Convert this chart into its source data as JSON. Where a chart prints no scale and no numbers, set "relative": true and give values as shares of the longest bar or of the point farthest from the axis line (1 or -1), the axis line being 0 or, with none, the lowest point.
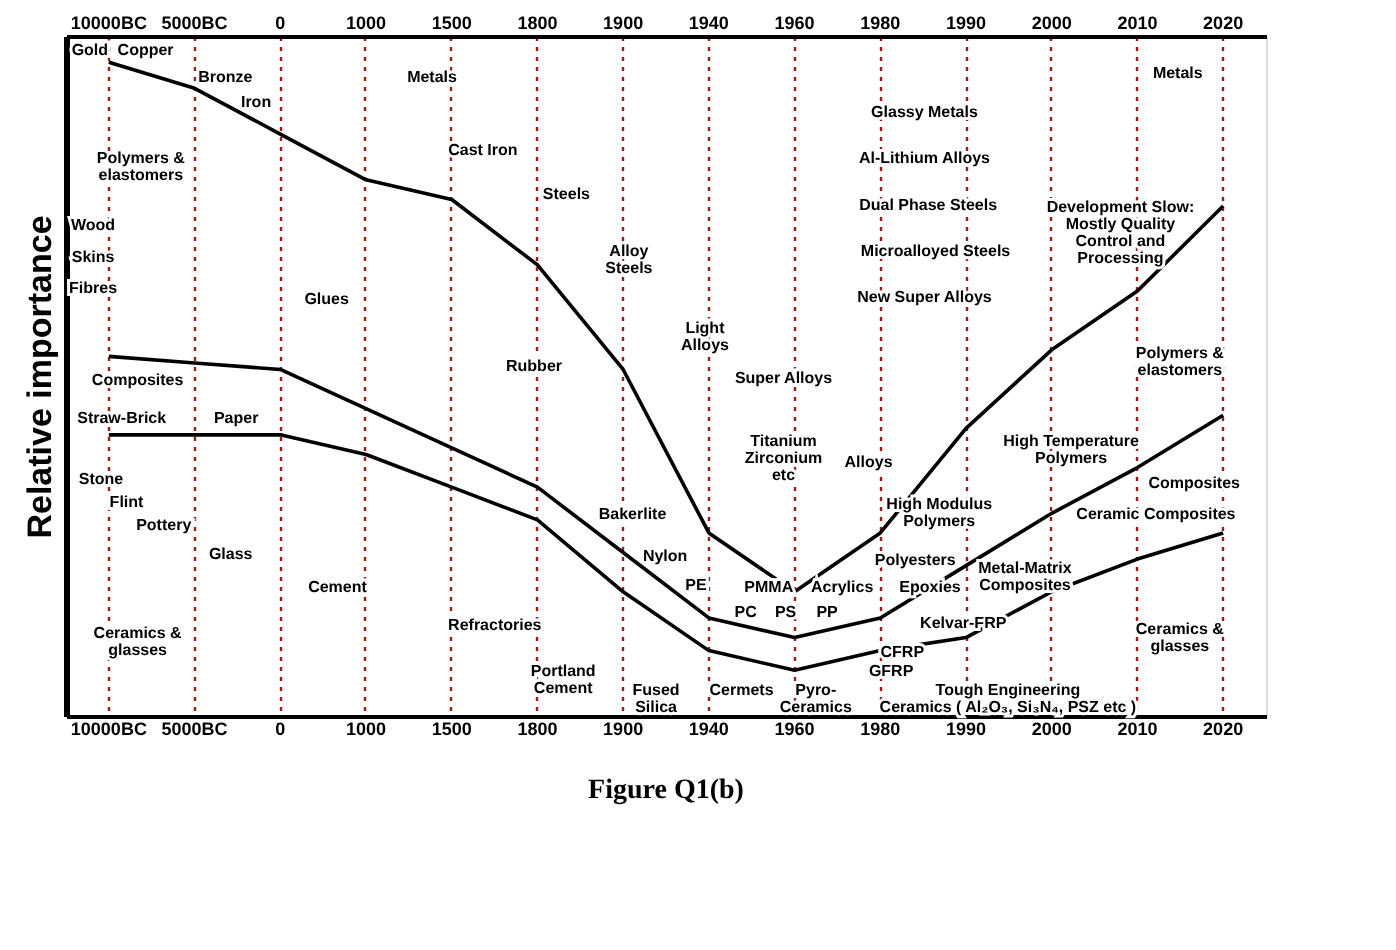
{
  "chart_data": {
    "type": "line",
    "relative": true,
    "ylabel": "Relative importance",
    "line_style": "solid",
    "marker": "none",
    "grid": "x",
    "categories": [
      "10000BC",
      "5000BC",
      "0",
      "1000",
      "1500",
      "1800",
      "1900",
      "1940",
      "1960",
      "1980",
      "1990",
      "2000",
      "2010",
      "2020"
    ],
    "series": [
      {
        "color": "#000000",
        "values": [
          1.0,
          0.96,
          0.89,
          0.82,
          0.79,
          0.69,
          0.53,
          0.28,
          0.19,
          0.28,
          0.44,
          0.56,
          0.65,
          0.78
        ]
      },
      {
        "color": "#000000",
        "values": [
          0.55,
          0.54,
          0.53,
          0.47,
          0.41,
          0.35,
          0.25,
          0.15,
          0.12,
          0.15,
          0.23,
          0.31,
          0.38,
          0.46
        ]
      },
      {
        "color": "#000000",
        "values": [
          0.43,
          0.43,
          0.43,
          0.4,
          0.35,
          0.3,
          0.19,
          0.1,
          0.07,
          0.1,
          0.12,
          0.19,
          0.24,
          0.28
        ]
      }
    ],
    "annotations": [
      "Gold",
      "Copper",
      "Bronze",
      "Iron",
      "Metals",
      "Polymers &\nelastomers",
      "Wood",
      "Skins",
      "Fibres",
      "Glues",
      "Cast Iron",
      "Steels",
      "Alloy\nSteels",
      "Light\nAlloys",
      "Super Alloys",
      "Titanium\nZirconium\netc",
      "Alloys",
      "Rubber",
      "Glassy Metals",
      "Al-Lithium Alloys",
      "Dual Phase Steels",
      "Microalloyed Steels",
      "New Super Alloys",
      "Development Slow:\nMostly Quality\nControl and\nProcessing",
      "Metals",
      "Polymers &\nelastomers",
      "Composites",
      "Straw-Brick",
      "Paper",
      "Stone",
      "Flint",
      "Pottery",
      "Glass",
      "Cement",
      "Refractories",
      "Portland\nCement",
      "Bakerlite",
      "Nylon",
      "PE",
      "PMMA",
      "PC",
      "PS",
      "Acrylics",
      "PP",
      "Fused\nSilica",
      "Cermets",
      "Pyro-\nCeramics",
      "Tough Engineering\nCeramics ( Al₂O₃, Si₃N₄, PSZ etc )",
      "Polyesters",
      "Epoxies",
      "Kelvar-FRP",
      "CFRP",
      "GFRP",
      "High Modulus\nPolymers",
      "High Temperature\nPolymers",
      "Composites",
      "Ceramic Composites",
      "Metal-Matrix\nComposites",
      "Ceramics &\nglasses",
      "Ceramics &\nglasses",
      "Figure Q1(b)"
    ]
  }
}
